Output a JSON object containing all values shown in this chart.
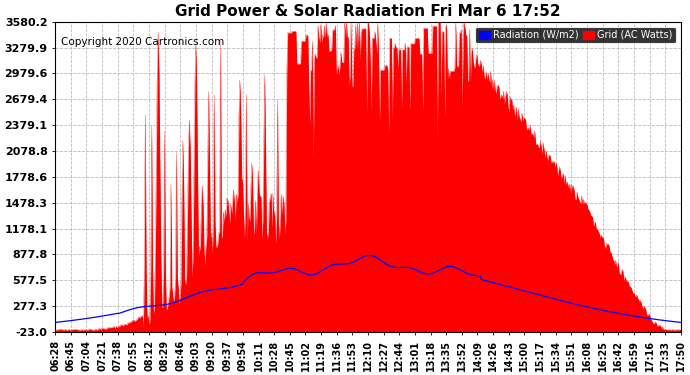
{
  "title": "Grid Power & Solar Radiation Fri Mar 6 17:52",
  "copyright": "Copyright 2020 Cartronics.com",
  "background_color": "#ffffff",
  "plot_bg_color": "#ffffff",
  "grid_color": "#aaaaaa",
  "yticks": [
    3580.2,
    3279.9,
    2979.6,
    2679.4,
    2379.1,
    2078.8,
    1778.6,
    1478.3,
    1178.1,
    877.8,
    577.5,
    277.3,
    -23.0
  ],
  "ymin": -23.0,
  "ymax": 3580.2,
  "xtick_labels": [
    "06:28",
    "06:45",
    "07:04",
    "07:21",
    "07:38",
    "07:55",
    "08:12",
    "08:29",
    "08:46",
    "09:03",
    "09:20",
    "09:37",
    "09:54",
    "10:11",
    "10:28",
    "10:45",
    "11:02",
    "11:19",
    "11:36",
    "11:53",
    "12:10",
    "12:27",
    "12:44",
    "13:01",
    "13:18",
    "13:35",
    "13:52",
    "14:09",
    "14:26",
    "14:43",
    "15:00",
    "15:17",
    "15:34",
    "15:51",
    "16:08",
    "16:25",
    "16:42",
    "16:59",
    "17:16",
    "17:33",
    "17:50"
  ],
  "legend_radiation_color": "#0000ff",
  "legend_grid_color": "#ff0000",
  "radiation_line_color": "#0000cc",
  "grid_fill_color": "#ff0000",
  "title_fontsize": 11,
  "axis_fontsize": 7,
  "copyright_fontsize": 7.5,
  "yticklabel_fontsize": 8
}
